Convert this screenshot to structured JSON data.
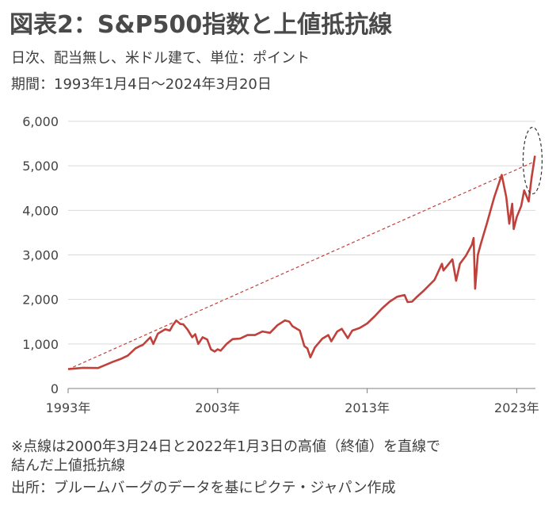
{
  "header": {
    "title": "図表2：S&P500指数と上値抵抗線",
    "subtitle1": "日次、配当無し、米ドル建て、単位：ポイント",
    "subtitle2": "期間：1993年1月4日～2024年3月20日"
  },
  "notes": {
    "line1": "※点線は2000年3月24日と2022年1月3日の高値（終値）を直線で",
    "line2": "結んだ上値抵抗線",
    "line3": "出所：ブルームバーグのデータを基にピクテ・ジャパン作成"
  },
  "chart_data": {
    "type": "line",
    "title": "",
    "xlabel": "",
    "ylabel": "",
    "xlim": [
      1993.0,
      2024.25
    ],
    "ylim": [
      0,
      6000
    ],
    "y_ticks": [
      0,
      1000,
      2000,
      3000,
      4000,
      5000,
      6000
    ],
    "y_tick_labels": [
      "0",
      "1,000",
      "2,000",
      "3,000",
      "4,000",
      "5,000",
      "6,000"
    ],
    "x_ticks": [
      1993,
      2003,
      2013,
      2023
    ],
    "x_tick_labels": [
      "1993年",
      "2003年",
      "2013年",
      "2023年"
    ],
    "grid": "horizontal",
    "colors": {
      "series": "#c0413b",
      "resistance": "#c0413b",
      "grid": "#d9d9d9",
      "circle": "#333333"
    },
    "series": [
      {
        "type": "line",
        "x": [
          1993.0,
          1994.0,
          1995.0,
          1996.0,
          1996.5,
          1997.0,
          1997.5,
          1997.8,
          1998.0,
          1998.5,
          1998.7,
          1999.0,
          1999.5,
          1999.8,
          2000.0,
          2000.23,
          2000.5,
          2000.7,
          2001.0,
          2001.3,
          2001.5,
          2001.7,
          2002.0,
          2002.3,
          2002.55,
          2002.8,
          2003.0,
          2003.2,
          2003.6,
          2004.0,
          2004.5,
          2005.0,
          2005.5,
          2006.0,
          2006.5,
          2007.0,
          2007.5,
          2007.8,
          2008.0,
          2008.5,
          2008.8,
          2009.0,
          2009.2,
          2009.5,
          2010.0,
          2010.4,
          2010.6,
          2011.0,
          2011.3,
          2011.7,
          2012.0,
          2012.5,
          2013.0,
          2013.5,
          2014.0,
          2014.5,
          2015.0,
          2015.5,
          2015.7,
          2016.0,
          2016.3,
          2016.8,
          2017.0,
          2017.5,
          2018.0,
          2018.1,
          2018.7,
          2018.95,
          2019.2,
          2019.6,
          2020.0,
          2020.12,
          2020.22,
          2020.4,
          2020.6,
          2021.0,
          2021.5,
          2022.0,
          2022.3,
          2022.5,
          2022.7,
          2022.8,
          2023.0,
          2023.3,
          2023.5,
          2023.8,
          2024.0,
          2024.22
        ],
        "y": [
          435,
          465,
          460,
          600,
          660,
          740,
          900,
          950,
          980,
          1150,
          1000,
          1230,
          1330,
          1300,
          1420,
          1527,
          1450,
          1440,
          1320,
          1150,
          1220,
          1000,
          1150,
          1100,
          880,
          830,
          880,
          850,
          1000,
          1110,
          1120,
          1200,
          1200,
          1280,
          1250,
          1420,
          1530,
          1500,
          1400,
          1300,
          950,
          900,
          700,
          920,
          1120,
          1200,
          1060,
          1280,
          1340,
          1130,
          1300,
          1360,
          1460,
          1620,
          1800,
          1950,
          2060,
          2100,
          1940,
          1950,
          2050,
          2200,
          2270,
          2440,
          2800,
          2650,
          2900,
          2420,
          2800,
          2980,
          3230,
          3380,
          2240,
          3000,
          3250,
          3700,
          4300,
          4796,
          4300,
          3700,
          4150,
          3580,
          3850,
          4100,
          4450,
          4200,
          4750,
          5225
        ]
      }
    ],
    "resistance_line": {
      "points": [
        {
          "x": 1993.0,
          "y": 430
        },
        {
          "x": 2024.22,
          "y": 5100
        }
      ]
    }
  }
}
